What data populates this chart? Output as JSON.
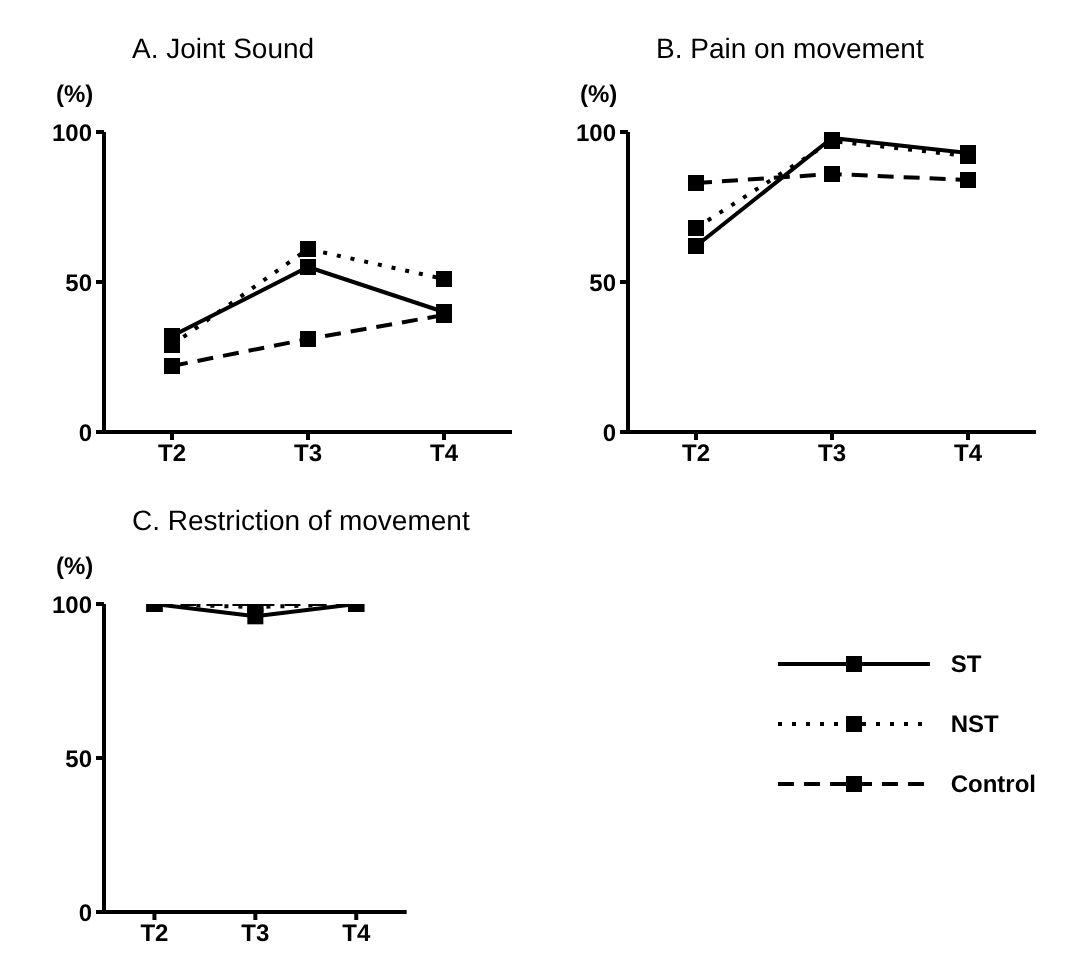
{
  "chart_data": [
    {
      "type": "line",
      "title": "A.  Joint Sound",
      "ylabel": "(%)",
      "categories": [
        "T2",
        "T3",
        "T4"
      ],
      "ylim": [
        0,
        100
      ],
      "yticks": [
        0,
        50,
        100
      ],
      "marker": "square",
      "grid": false,
      "legend": false,
      "series": [
        {
          "color": "#000000",
          "line_style": "solid",
          "values": [
            32,
            55,
            40
          ]
        },
        {
          "color": "#000000",
          "line_style": "dotted",
          "values": [
            29,
            61,
            51
          ]
        },
        {
          "color": "#000000",
          "line_style": "dashed",
          "values": [
            22,
            31,
            39
          ]
        }
      ]
    },
    {
      "type": "line",
      "title": "B.  Pain on movement",
      "ylabel": "(%)",
      "categories": [
        "T2",
        "T3",
        "T4"
      ],
      "ylim": [
        0,
        100
      ],
      "yticks": [
        0,
        50,
        100
      ],
      "marker": "square",
      "grid": false,
      "legend": false,
      "series": [
        {
          "color": "#000000",
          "line_style": "solid",
          "values": [
            62,
            98,
            93
          ]
        },
        {
          "color": "#000000",
          "line_style": "dotted",
          "values": [
            68,
            97,
            92
          ]
        },
        {
          "color": "#000000",
          "line_style": "dashed",
          "values": [
            83,
            86,
            84
          ]
        }
      ]
    },
    {
      "type": "line",
      "title": "C.  Restriction of movement",
      "ylabel": "(%)",
      "categories": [
        "T2",
        "T3",
        "T4"
      ],
      "ylim": [
        0,
        100
      ],
      "yticks": [
        0,
        50,
        100
      ],
      "marker": "square",
      "grid": false,
      "legend": "right",
      "series": [
        {
          "name": "ST",
          "color": "#000000",
          "line_style": "solid",
          "values": [
            100,
            96,
            100
          ]
        },
        {
          "name": "NST",
          "color": "#000000",
          "line_style": "dotted",
          "values": [
            100,
            99,
            100
          ]
        },
        {
          "name": "Control",
          "color": "#000000",
          "line_style": "dashed",
          "values": [
            100,
            100,
            100
          ]
        }
      ]
    }
  ]
}
